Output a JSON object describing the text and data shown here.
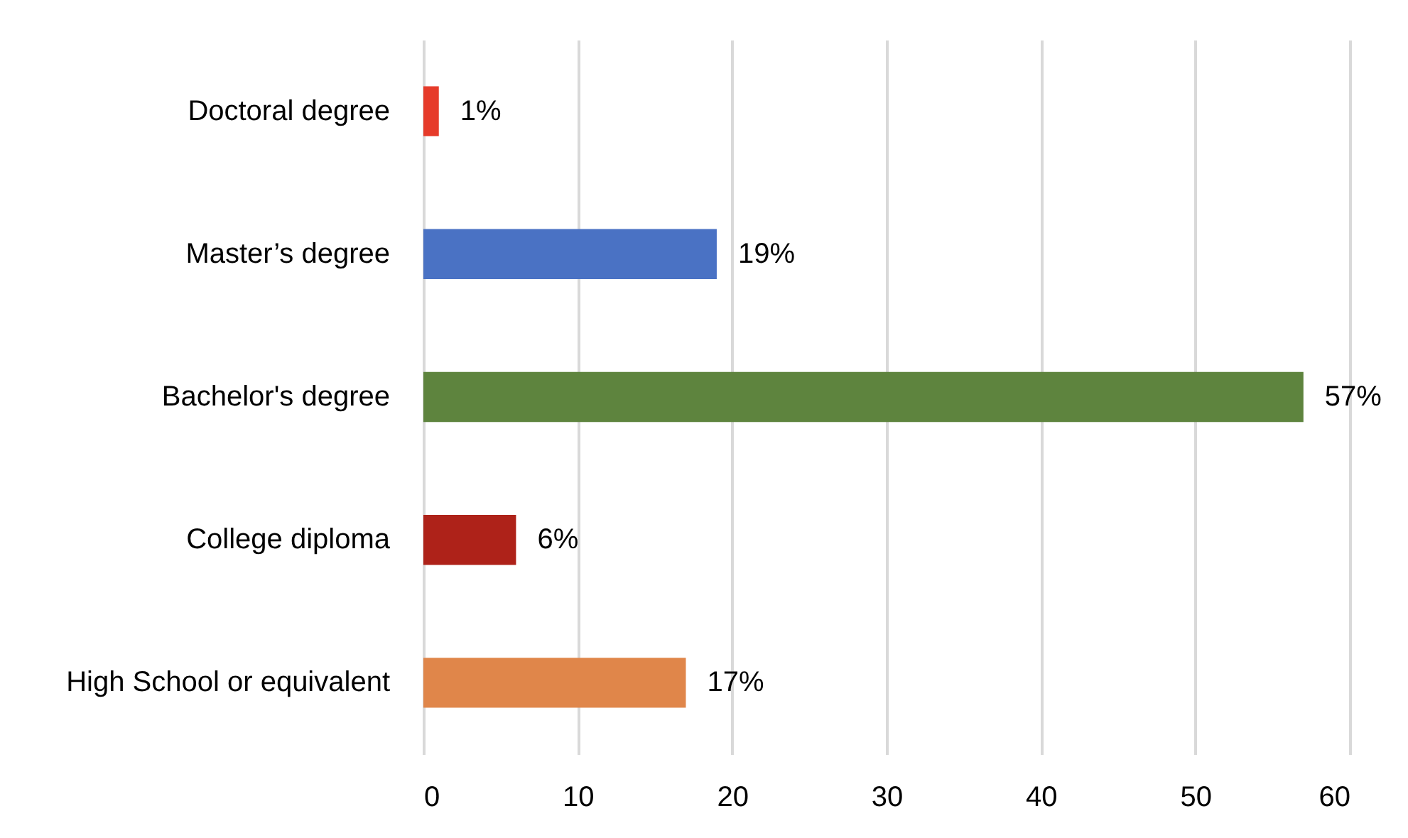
{
  "chart_data": {
    "type": "bar",
    "orientation": "horizontal",
    "categories": [
      "Doctoral degree",
      "Master’s degree",
      "Bachelor's degree",
      "College diploma",
      "High School or equivalent"
    ],
    "values": [
      1,
      19,
      57,
      6,
      17
    ],
    "colors": [
      "#e63b2a",
      "#4a72c4",
      "#5e843e",
      "#ae2219",
      "#e0864a"
    ],
    "value_labels": [
      "1%",
      "19%",
      "57%",
      "6%",
      "17%"
    ],
    "xlim": [
      0,
      60
    ],
    "xticks": [
      0,
      10,
      20,
      30,
      40,
      50,
      60
    ],
    "grid": "x"
  }
}
